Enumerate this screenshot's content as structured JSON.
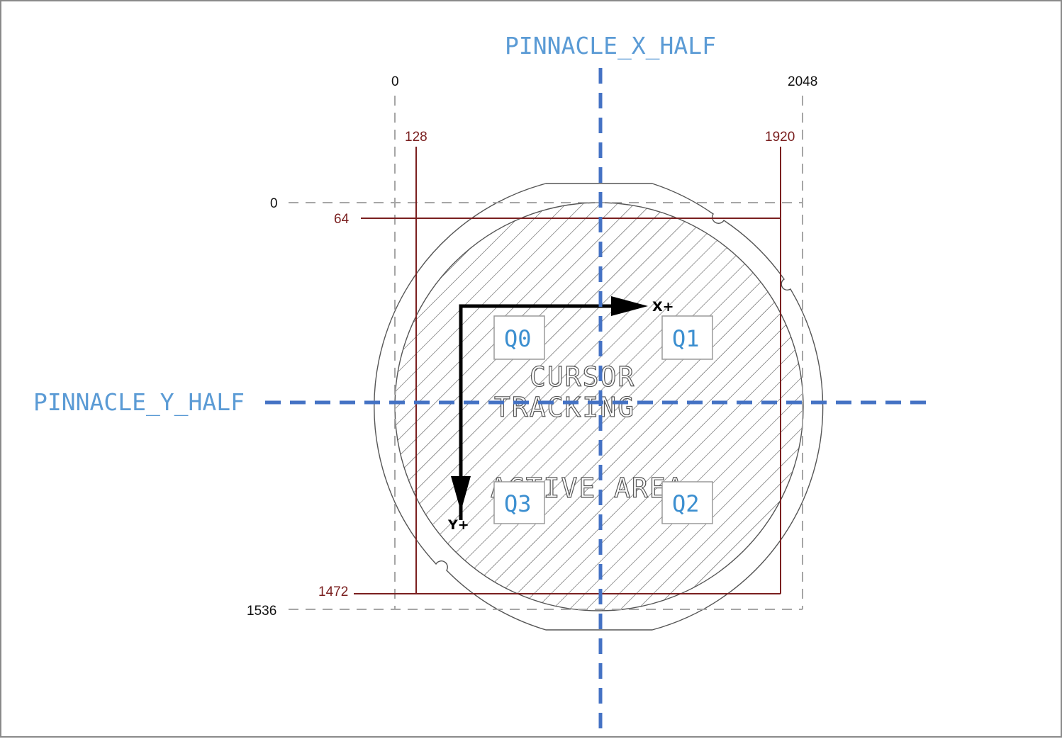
{
  "axes": {
    "x_half_label": "PINNACLE_X_HALF",
    "y_half_label": "PINNACLE_Y_HALF"
  },
  "dimensions": {
    "x_min": "0",
    "x_max": "2048",
    "x_active_min": "128",
    "x_active_max": "1920",
    "y_min": "0",
    "y_max": "1536",
    "y_active_min": "64",
    "y_active_max": "1472"
  },
  "direction": {
    "x_label": "X+",
    "y_label": "Y+"
  },
  "active_area": {
    "line1": "CURSOR",
    "line2": "TRACKING",
    "line3": "ACTIVE AREA"
  },
  "quadrants": {
    "q0": "Q0",
    "q1": "Q1",
    "q2": "Q2",
    "q3": "Q3"
  },
  "colors": {
    "half_lines": "#4472c4",
    "half_labels": "#5b9bd5",
    "active_bounds": "#7a1f1f",
    "outer_bounds": "#a6a6a6"
  }
}
